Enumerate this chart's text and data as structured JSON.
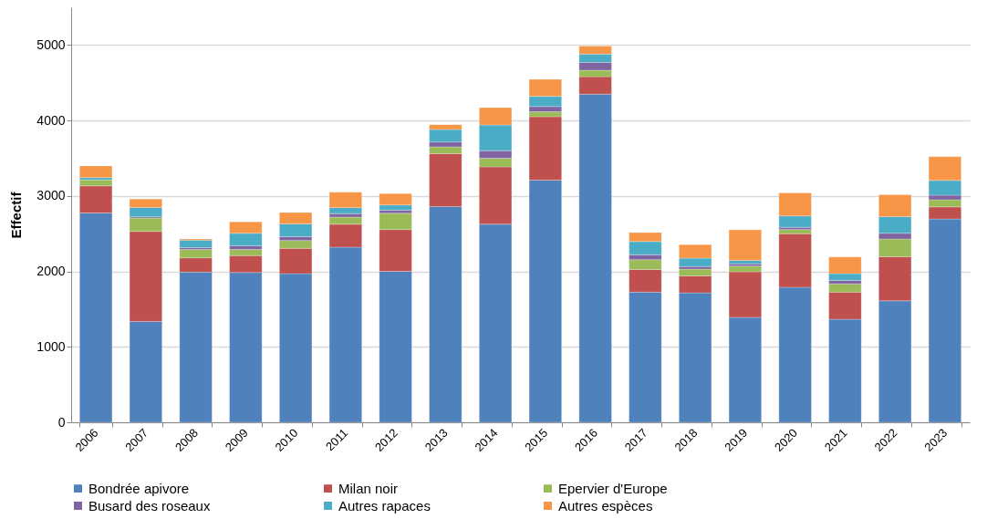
{
  "chart_data": {
    "type": "bar",
    "stacked": true,
    "ylabel": "Effectif",
    "categories": [
      "2006",
      "2007",
      "2008",
      "2009",
      "2010",
      "2011",
      "2012",
      "2013",
      "2014",
      "2015",
      "2016",
      "2017",
      "2018",
      "2019",
      "2020",
      "2021",
      "2022",
      "2023"
    ],
    "series": [
      {
        "name": "Bondrée apivore",
        "color": "#4f81bd",
        "values": [
          2775,
          1337,
          1990,
          1985,
          1970,
          2320,
          2000,
          2860,
          2625,
          3210,
          4350,
          1725,
          1715,
          1390,
          1790,
          1365,
          1610,
          2695
        ]
      },
      {
        "name": "Milan noir",
        "color": "#c0504d",
        "values": [
          358,
          1193,
          190,
          225,
          335,
          305,
          555,
          700,
          760,
          840,
          230,
          300,
          225,
          605,
          710,
          360,
          585,
          160
        ]
      },
      {
        "name": "Epervier d'Europe",
        "color": "#9bbb59",
        "values": [
          80,
          177,
          110,
          80,
          105,
          95,
          215,
          90,
          115,
          65,
          85,
          130,
          90,
          75,
          55,
          110,
          235,
          95
        ]
      },
      {
        "name": "Busard des roseaux",
        "color": "#8064a2",
        "values": [
          null,
          16,
          25,
          50,
          50,
          45,
          40,
          65,
          100,
          70,
          105,
          65,
          35,
          30,
          30,
          45,
          75,
          60
        ]
      },
      {
        "name": "Autres rapaces",
        "color": "#4bacc6",
        "values": [
          30,
          124,
          100,
          165,
          170,
          80,
          70,
          165,
          340,
          135,
          110,
          175,
          110,
          45,
          150,
          90,
          220,
          195
        ]
      },
      {
        "name": "Autres espèces",
        "color": "#f79646",
        "values": [
          155,
          113,
          15,
          150,
          150,
          205,
          150,
          65,
          230,
          225,
          105,
          120,
          180,
          405,
          305,
          220,
          290,
          315
        ]
      }
    ],
    "ylim": [
      0,
      5500
    ],
    "yticks": [
      0,
      1000,
      2000,
      3000,
      4000,
      5000
    ],
    "grid": "y",
    "legend": "bottom"
  }
}
